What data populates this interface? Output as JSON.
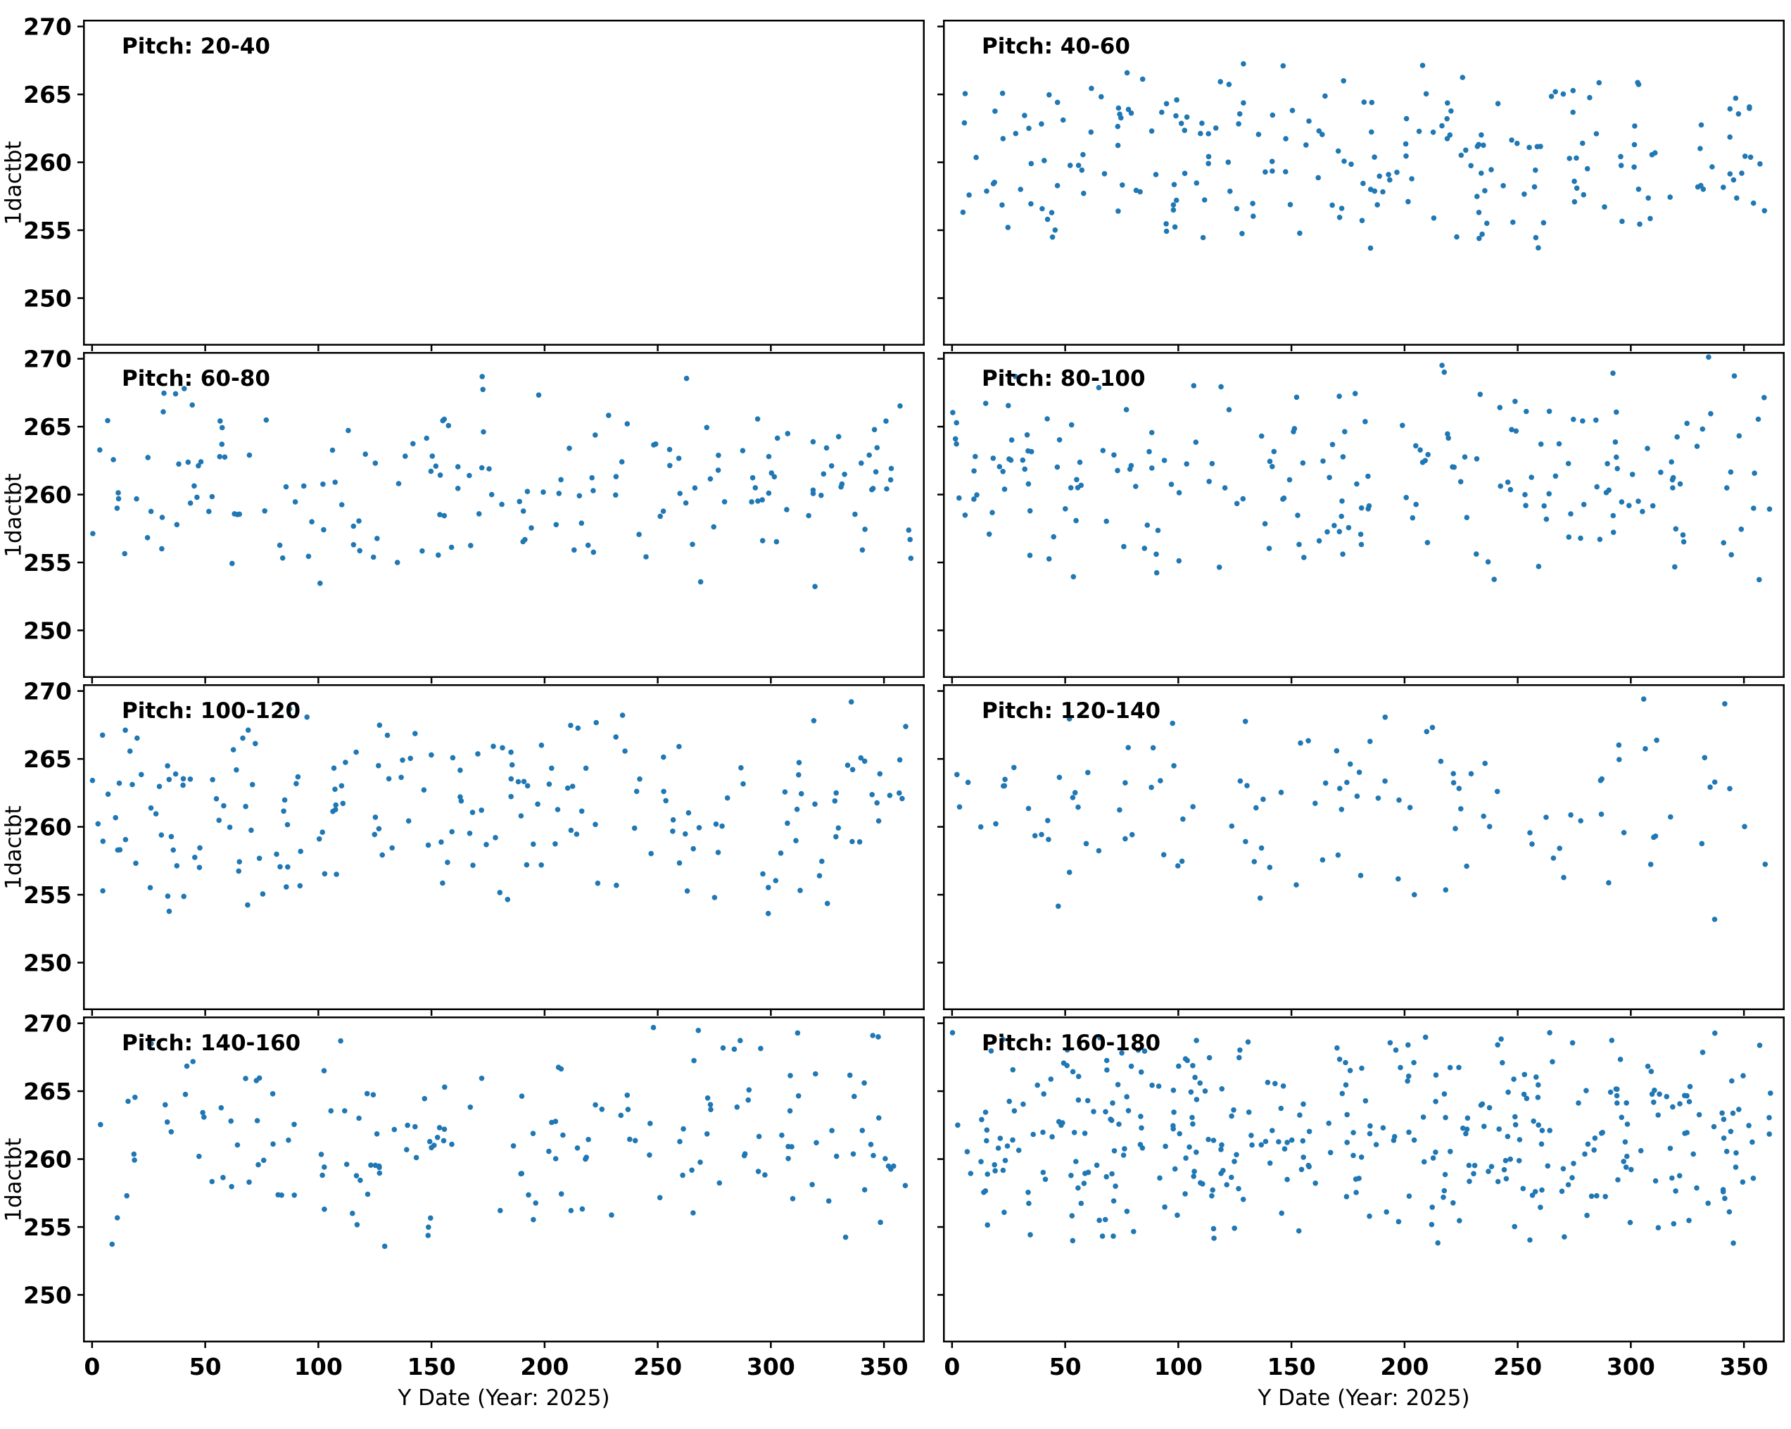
{
  "chart_data": {
    "type": "scatter",
    "xlabel": "Y Date (Year: 2025)",
    "ylabel": "1dactbt",
    "x_ticks": [
      0,
      50,
      100,
      150,
      200,
      250,
      300,
      350
    ],
    "y_ticks": [
      250,
      255,
      260,
      265,
      270
    ],
    "xlim": [
      -4,
      368
    ],
    "ylim": [
      246.5,
      270.5
    ],
    "marker_color": "#1f77b4",
    "frame_color": "#000000",
    "legend": "none",
    "grid": false,
    "panels": [
      {
        "title": "Pitch: 20-40",
        "n_points": 0
      },
      {
        "title": "Pitch: 40-60",
        "n_points": 230,
        "seed": 101,
        "x_range": [
          0,
          362
        ],
        "y_range": [
          252.8,
          268.6
        ]
      },
      {
        "title": "Pitch: 60-80",
        "n_points": 185,
        "seed": 102,
        "x_range": [
          0,
          362
        ],
        "y_range": [
          252.8,
          269.6
        ]
      },
      {
        "title": "Pitch: 80-100",
        "n_points": 215,
        "seed": 103,
        "x_range": [
          0,
          362
        ],
        "y_range": [
          252.8,
          270.3
        ]
      },
      {
        "title": "Pitch: 100-120",
        "n_points": 210,
        "seed": 104,
        "x_range": [
          0,
          362
        ],
        "y_range": [
          253.0,
          270.0
        ]
      },
      {
        "title": "Pitch: 120-140",
        "n_points": 120,
        "seed": 105,
        "x_range": [
          0,
          362
        ],
        "y_range": [
          253.0,
          270.0
        ]
      },
      {
        "title": "Pitch: 140-160",
        "n_points": 175,
        "seed": 106,
        "x_range": [
          0,
          362
        ],
        "y_range": [
          253.3,
          270.4
        ]
      },
      {
        "title": "Pitch: 160-180",
        "n_points": 380,
        "seed": 107,
        "x_range": [
          0,
          362
        ],
        "y_range": [
          252.7,
          270.4
        ]
      }
    ]
  }
}
